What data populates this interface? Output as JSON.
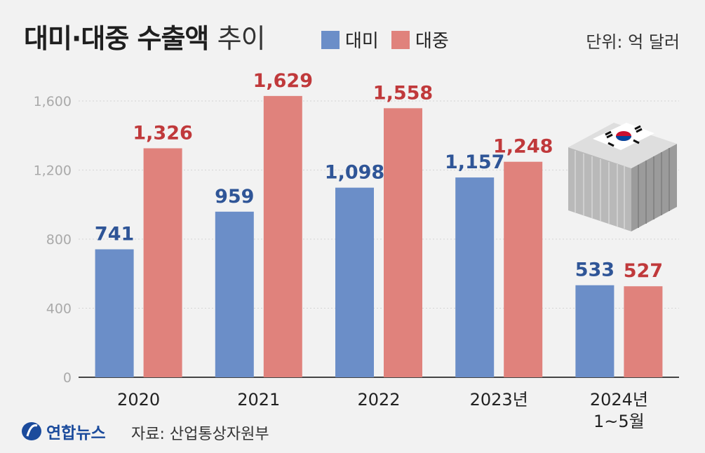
{
  "header": {
    "title_bold": "대미·대중 수출액",
    "title_light": "추이",
    "unit": "단위: 억 달러"
  },
  "footer": {
    "logo": "연합뉴스",
    "source": "자료: 산업통상자원부"
  },
  "colors": {
    "us": "#6b8ec8",
    "china": "#e0827c",
    "us_label": "#2f5597",
    "china_label": "#c0393b",
    "axis": "#444444",
    "tick_label": "#aaaaaa",
    "background": "#f2f2f2"
  },
  "icons": [
    "yonhap-logo-icon",
    "korea-flag-container-icon"
  ],
  "chart_data": {
    "type": "bar",
    "title": "대미·대중 수출액 추이",
    "categories": [
      "2020",
      "2021",
      "2022",
      "2023년",
      "2024년\n1~5월"
    ],
    "series": [
      {
        "name": "대미",
        "values": [
          741,
          959,
          1098,
          1157,
          533
        ],
        "labels": [
          "741",
          "959",
          "1,098",
          "1,157",
          "533"
        ]
      },
      {
        "name": "대중",
        "values": [
          1326,
          1629,
          1558,
          1248,
          527
        ],
        "labels": [
          "1,326",
          "1,629",
          "1,558",
          "1,248",
          "527"
        ]
      }
    ],
    "yticks": [
      0,
      400,
      800,
      1200,
      1600
    ],
    "ytick_labels": [
      "0",
      "400",
      "800",
      "1,200",
      "1,600"
    ],
    "ylim": [
      0,
      1600
    ],
    "legend": "top",
    "grid": true
  }
}
